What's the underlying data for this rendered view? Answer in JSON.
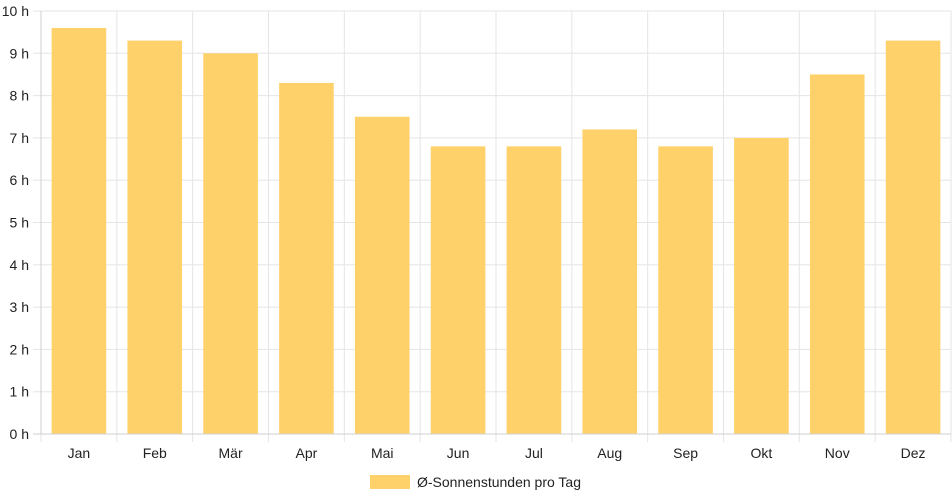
{
  "chart_data": {
    "type": "bar",
    "categories": [
      "Jan",
      "Feb",
      "Mär",
      "Apr",
      "Mai",
      "Jun",
      "Jul",
      "Aug",
      "Sep",
      "Okt",
      "Nov",
      "Dez"
    ],
    "series": [
      {
        "name": "Ø-Sonnenstunden pro Tag",
        "values": [
          9.6,
          9.3,
          9.0,
          8.3,
          7.5,
          6.8,
          6.8,
          7.2,
          6.8,
          7.0,
          8.5,
          9.3
        ],
        "color": "#fed16a"
      }
    ],
    "y_ticks": [
      "0 h",
      "1 h",
      "2 h",
      "3 h",
      "4 h",
      "5 h",
      "6 h",
      "7 h",
      "8 h",
      "9 h",
      "10 h"
    ],
    "ylim": [
      0,
      10
    ],
    "grid": true,
    "legend_position": "bottom",
    "grid_color": "#e5e5e5"
  }
}
